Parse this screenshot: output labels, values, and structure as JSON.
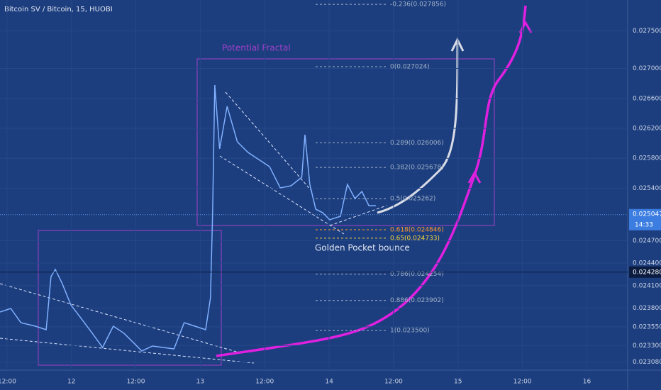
{
  "chart_data": {
    "type": "line",
    "title": "Bitcoin SV / Bitcoin, 15, HUOBI",
    "annotations": [
      "Potential Fractal",
      "Golden Pocket bounce"
    ],
    "x": [
      -1.3,
      0.7,
      2.6,
      5.3,
      7.3,
      8.2,
      9.0,
      10.3,
      11.9,
      13.9,
      15.9,
      17.8,
      19.8,
      21.8,
      23.8,
      25.1,
      27.1,
      29.1,
      31.1,
      33.0,
      35.0,
      37.0,
      37.9,
      38.3,
      38.7,
      39.6,
      41.0,
      42.9,
      44.9,
      46.9,
      48.9,
      50.9,
      52.9,
      54.9,
      55.5,
      56.4,
      57.5,
      58.8,
      60.1,
      62.1,
      63.4,
      64.8,
      66.1,
      67.4,
      68.7
    ],
    "values": [
      0.023747,
      0.023795,
      0.023605,
      0.023558,
      0.023511,
      0.024221,
      0.024316,
      0.024126,
      0.023842,
      0.023653,
      0.023463,
      0.023274,
      0.023558,
      0.023463,
      0.023321,
      0.023227,
      0.023293,
      0.023274,
      0.023255,
      0.023605,
      0.023558,
      0.023511,
      0.023937,
      0.025073,
      0.026778,
      0.025926,
      0.026494,
      0.02602,
      0.025878,
      0.025783,
      0.025689,
      0.025405,
      0.025433,
      0.025547,
      0.026115,
      0.025452,
      0.025121,
      0.025073,
      0.024979,
      0.025026,
      0.025452,
      0.025263,
      0.025357,
      0.025168,
      0.025168
    ],
    "color": "#7fb0ff",
    "xlim": [
      -1.3,
      115.6
    ],
    "xticks": [
      {
        "value": 0,
        "label": "12:00"
      },
      {
        "value": 12,
        "label": "12"
      },
      {
        "value": 24,
        "label": "12:00"
      },
      {
        "value": 36,
        "label": "13"
      },
      {
        "value": 48,
        "label": "12:00"
      },
      {
        "value": 60,
        "label": "14"
      },
      {
        "value": 72,
        "label": "12:00"
      },
      {
        "value": 84,
        "label": "15"
      },
      {
        "value": 96,
        "label": "12:00"
      },
      {
        "value": 108,
        "label": "16"
      }
    ],
    "ylim": [
      0.02299,
      0.027914
    ],
    "yticks": [
      {
        "value": 0.0275,
        "label": "0.027500"
      },
      {
        "value": 0.027,
        "label": "0.027000"
      },
      {
        "value": 0.0266,
        "label": "0.026600"
      },
      {
        "value": 0.0262,
        "label": "0.026200"
      },
      {
        "value": 0.0258,
        "label": "0.025800"
      },
      {
        "value": 0.0254,
        "label": "0.025400"
      },
      {
        "value": 0.0247,
        "label": "0.024700"
      },
      {
        "value": 0.0244,
        "label": "0.024400"
      },
      {
        "value": 0.0241,
        "label": "0.024100"
      },
      {
        "value": 0.0238,
        "label": "0.023800"
      },
      {
        "value": 0.02355,
        "label": "0.023550"
      },
      {
        "value": 0.0233,
        "label": "0.023300"
      },
      {
        "value": 0.02308,
        "label": "0.023080"
      }
    ],
    "grid": true,
    "fib_levels": [
      {
        "value": 0.027856,
        "label": "-0.236(0.027856)"
      },
      {
        "value": 0.027024,
        "label": "0(0.027024)"
      },
      {
        "value": 0.026006,
        "label": "0.289(0.026006)"
      },
      {
        "value": 0.025678,
        "label": "0.382(0.025678)"
      },
      {
        "value": 0.025262,
        "label": "0.5(0.025262)"
      },
      {
        "value": 0.024846,
        "label": "0.618(0.024846)",
        "color": "#ff9a2e"
      },
      {
        "value": 0.024733,
        "label": "0.65(0.024733)",
        "color": "#f5d23a"
      },
      {
        "value": 0.024254,
        "label": "0.786(0.024254)"
      },
      {
        "value": 0.023902,
        "label": "0.886(0.023902)"
      },
      {
        "value": 0.0235,
        "label": "1(0.023500)"
      }
    ],
    "last_price": 0.025047,
    "countdown": "14:33",
    "level_line": {
      "value": 0.02428,
      "label": "0.024280"
    }
  }
}
